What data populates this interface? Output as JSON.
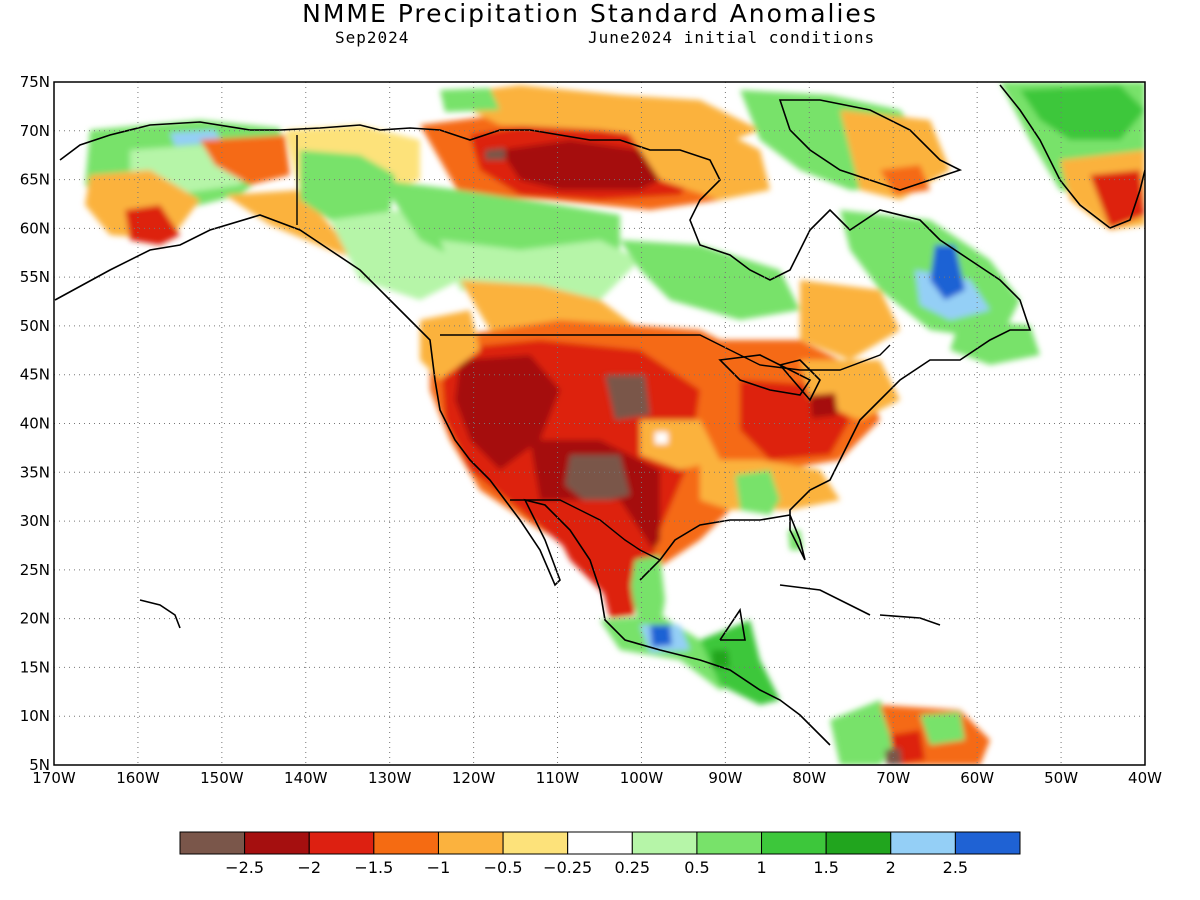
{
  "title": "NMME Precipitation Standard Anomalies",
  "subtitle_left": "Sep2024",
  "subtitle_right": "June2024 initial conditions",
  "map": {
    "lon_range": [
      -170,
      -40
    ],
    "lat_range": [
      5,
      75
    ],
    "lat_labels": [
      "75N",
      "70N",
      "65N",
      "60N",
      "55N",
      "50N",
      "45N",
      "40N",
      "35N",
      "30N",
      "25N",
      "20N",
      "15N",
      "10N",
      "5N"
    ],
    "lon_labels": [
      "170W",
      "160W",
      "150W",
      "140W",
      "130W",
      "120W",
      "110W",
      "100W",
      "90W",
      "80W",
      "70W",
      "60W",
      "50W",
      "40W"
    ],
    "gridlines": "dotted"
  },
  "colorbar": {
    "colors": [
      "#7a564a",
      "#a50f0f",
      "#dd2011",
      "#f56b12",
      "#fbb23e",
      "#fde27a",
      "#ffffff",
      "#b6f5a8",
      "#78e26a",
      "#3dc73b",
      "#21a51e",
      "#94cff6",
      "#1f62d4"
    ],
    "tick_labels": [
      "-2.5",
      "-2",
      "-1.5",
      "-1",
      "-0.5",
      "-0.25",
      "0.25",
      "0.5",
      "1",
      "1.5",
      "2",
      "2.5"
    ]
  },
  "anomaly_regions": [
    {
      "name": "us-central-west-dry",
      "value": -1.5,
      "color": "#dd2011"
    },
    {
      "name": "four-corners-very-dry",
      "value": -2.5,
      "color": "#7a564a"
    },
    {
      "name": "northern-canada-dry",
      "value": -2,
      "color": "#a50f0f"
    },
    {
      "name": "quebec-labrador-wet",
      "value": 2.5,
      "color": "#1f62d4"
    },
    {
      "name": "central-america-wet",
      "value": 2,
      "color": "#94cff6"
    },
    {
      "name": "southeast-us-wet",
      "value": 1,
      "color": "#78e26a"
    }
  ]
}
